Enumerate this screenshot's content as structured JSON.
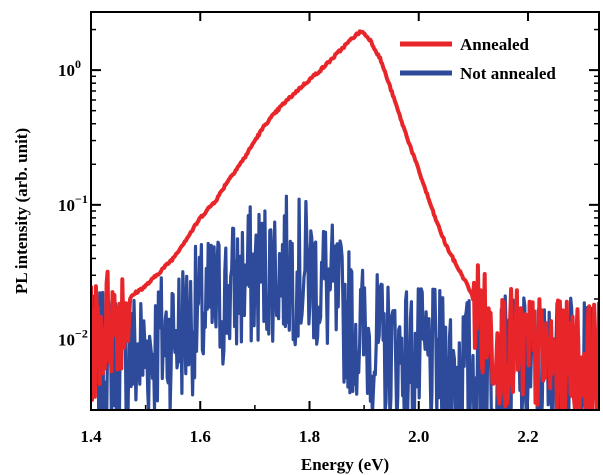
{
  "chart_data": {
    "type": "line",
    "xlabel": "Energy (eV)",
    "ylabel": "PL intensity (arb. unit)",
    "xlim": [
      1.4,
      2.33
    ],
    "ylim": [
      0.003,
      2.7
    ],
    "yscale": "log",
    "grid": false,
    "legend_position": "top-right",
    "x_ticks": [
      {
        "value": 1.4,
        "label": "1.4"
      },
      {
        "value": 1.6,
        "label": "1.6"
      },
      {
        "value": 1.8,
        "label": "1.8"
      },
      {
        "value": 2.0,
        "label": "2.0"
      },
      {
        "value": 2.2,
        "label": "2.2"
      }
    ],
    "y_ticks": [
      {
        "value": 1,
        "base": "10",
        "exp": "0"
      },
      {
        "value": 0.1,
        "base": "10",
        "exp": "−1"
      },
      {
        "value": 0.01,
        "base": "10",
        "exp": "−2"
      }
    ],
    "series": [
      {
        "name": "Annealed",
        "color": "#e8262a",
        "noisy_below": 0.02,
        "x": [
          1.4,
          1.42,
          1.45,
          1.48,
          1.5,
          1.52,
          1.55,
          1.58,
          1.6,
          1.63,
          1.65,
          1.68,
          1.7,
          1.72,
          1.75,
          1.78,
          1.8,
          1.82,
          1.84,
          1.86,
          1.88,
          1.895,
          1.91,
          1.93,
          1.95,
          1.97,
          2.0,
          2.03,
          2.05,
          2.07,
          2.09,
          2.1,
          2.12,
          2.15,
          2.2,
          2.25,
          2.33
        ],
        "y": [
          0.009,
          0.012,
          0.016,
          0.022,
          0.025,
          0.03,
          0.04,
          0.06,
          0.08,
          0.11,
          0.15,
          0.22,
          0.3,
          0.4,
          0.55,
          0.72,
          0.85,
          1.0,
          1.2,
          1.45,
          1.75,
          1.95,
          1.7,
          1.2,
          0.7,
          0.4,
          0.18,
          0.08,
          0.05,
          0.035,
          0.025,
          0.02,
          0.012,
          0.009,
          0.008,
          0.007,
          0.007
        ]
      },
      {
        "name": "Not annealed",
        "color": "#2e4a9a",
        "noisy_below": 1,
        "x": [
          1.4,
          1.45,
          1.5,
          1.55,
          1.6,
          1.65,
          1.7,
          1.72,
          1.75,
          1.8,
          1.83,
          1.85,
          1.88,
          1.92,
          1.95,
          2.0,
          2.1,
          2.2,
          2.33
        ],
        "y": [
          0.006,
          0.007,
          0.008,
          0.011,
          0.015,
          0.022,
          0.03,
          0.033,
          0.034,
          0.031,
          0.025,
          0.018,
          0.013,
          0.009,
          0.008,
          0.007,
          0.006,
          0.006,
          0.006
        ]
      }
    ]
  }
}
